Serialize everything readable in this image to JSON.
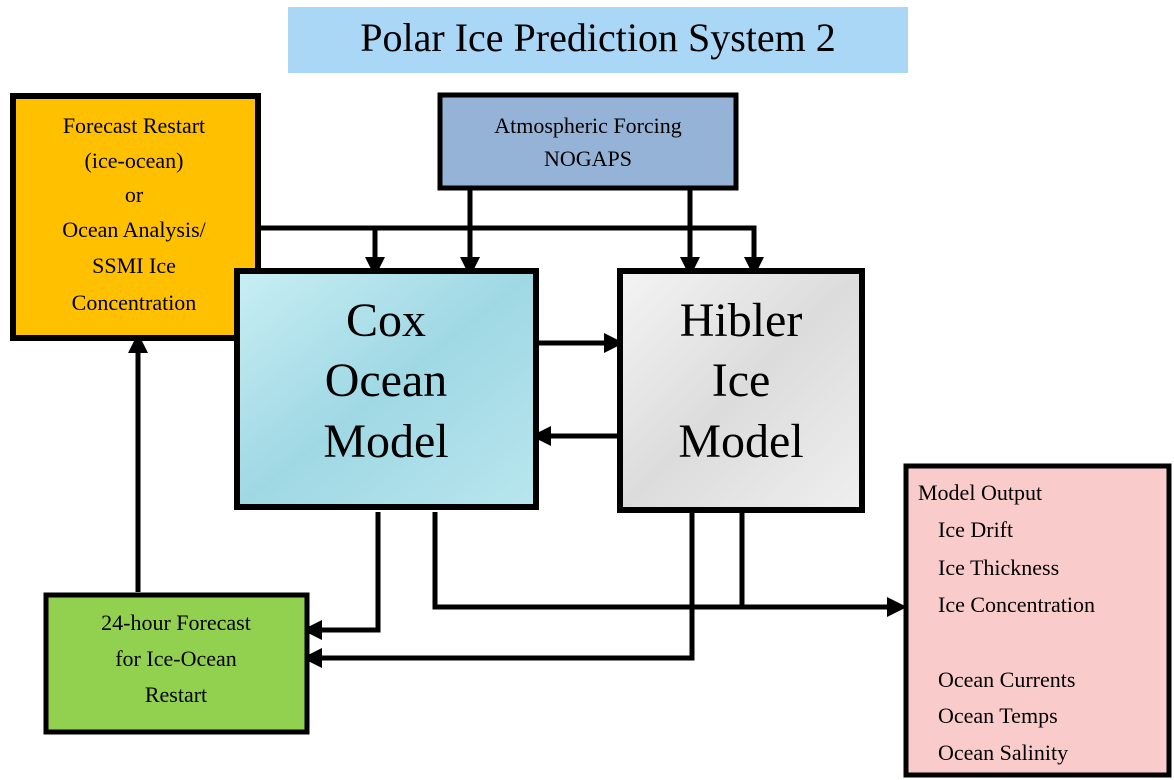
{
  "title": "Polar Ice Prediction System 2",
  "nodes": [
    {
      "id": "restart",
      "lines": [
        "Forecast Restart",
        "(ice-ocean)",
        "or",
        "Ocean Analysis/",
        "SSMI Ice",
        "Concentration"
      ]
    },
    {
      "id": "forcing",
      "lines": [
        "Atmospheric Forcing",
        "NOGAPS"
      ]
    },
    {
      "id": "cox",
      "lines": [
        "Cox",
        "Ocean",
        "Model"
      ]
    },
    {
      "id": "hibler",
      "lines": [
        "Hibler",
        "Ice",
        "Model"
      ]
    },
    {
      "id": "output",
      "lines": [
        "Model Output",
        "Ice Drift",
        "Ice Thickness",
        "Ice Concentration",
        "Ocean Currents",
        "Ocean Temps",
        "Ocean Salinity"
      ]
    },
    {
      "id": "forecast",
      "lines": [
        "24-hour Forecast",
        "for Ice-Ocean",
        "Restart"
      ]
    }
  ]
}
